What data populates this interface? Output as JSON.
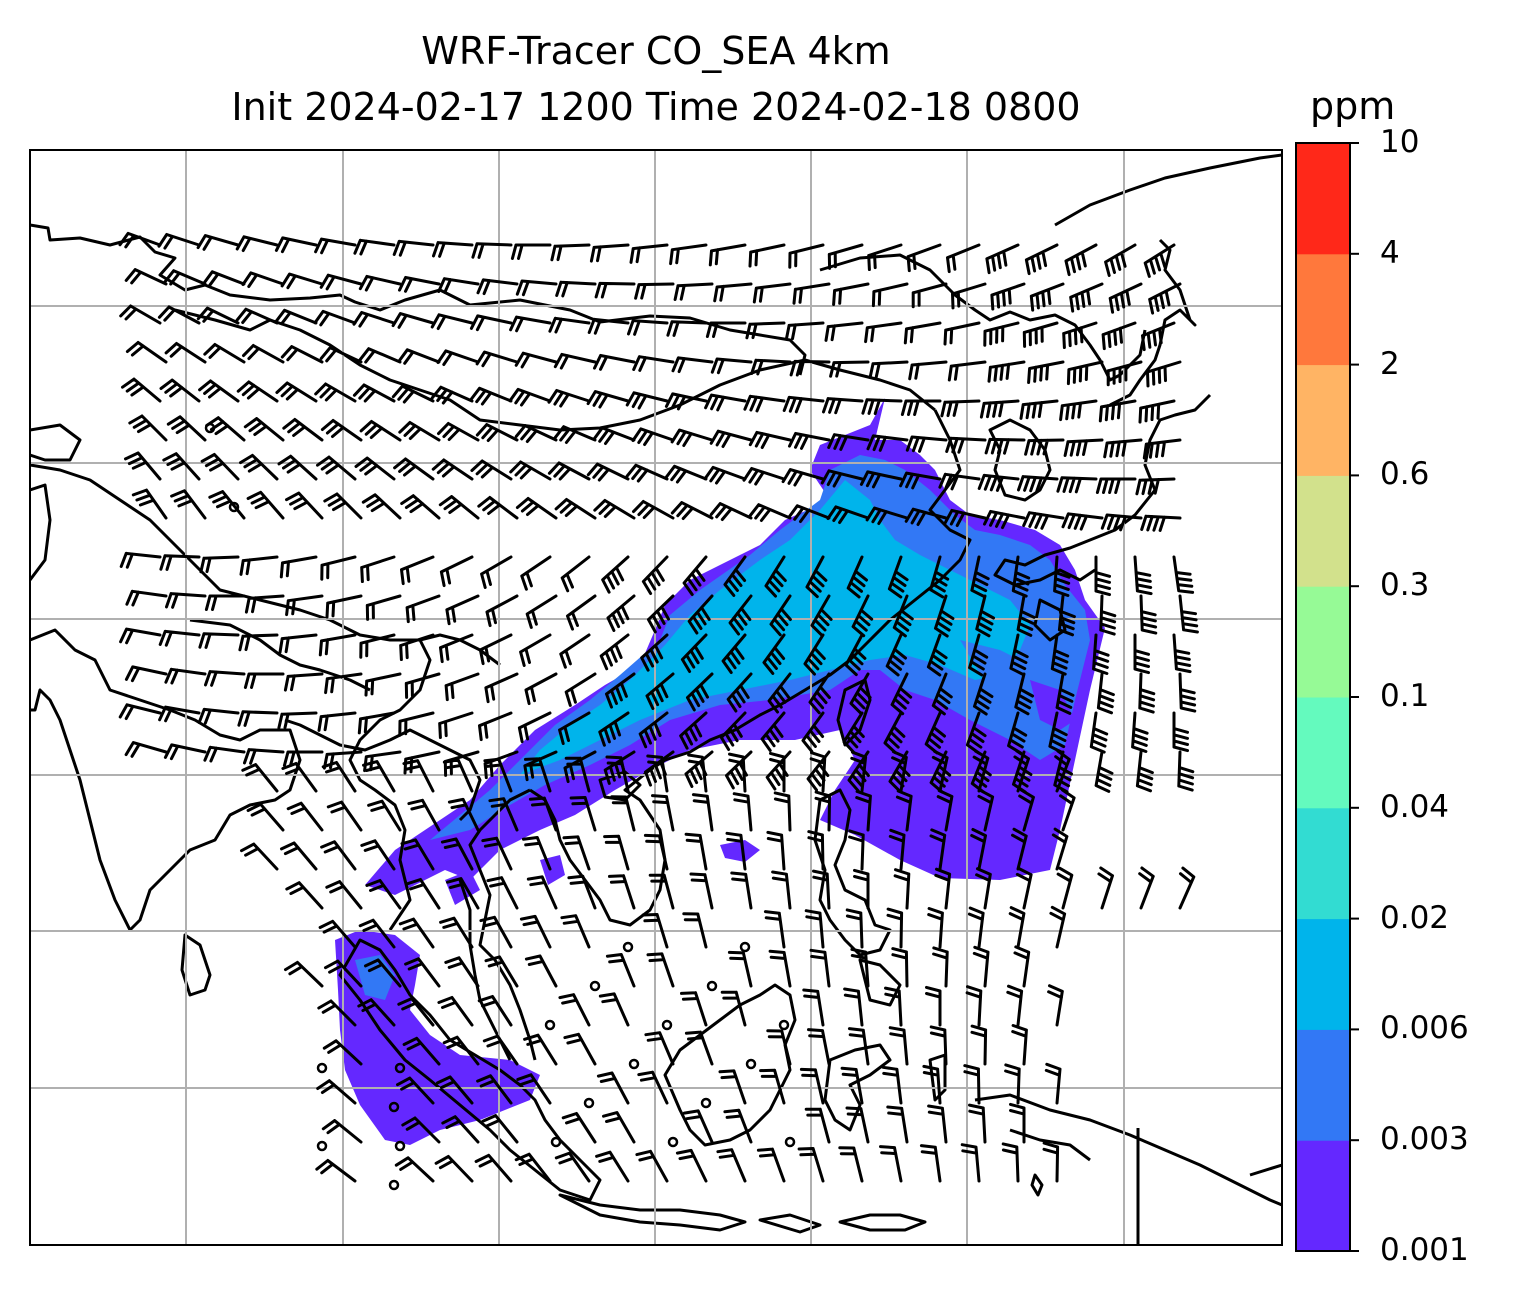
{
  "title_line1": "WRF-Tracer CO_SEA 4km",
  "title_line2": "Init 2024-02-17 1200 Time 2024-02-18 0800",
  "colorbar": {
    "unit": "ppm",
    "levels": [
      "0.001",
      "0.003",
      "0.006",
      "0.02",
      "0.04",
      "0.1",
      "0.3",
      "0.6",
      "2",
      "4",
      "10"
    ],
    "colors": [
      "#6428ff",
      "#3278f5",
      "#00b4eb",
      "#32dcd2",
      "#64fabe",
      "#96fa96",
      "#d2e18c",
      "#ffb464",
      "#ff783c",
      "#ff2819"
    ]
  },
  "map": {
    "gridlines": true,
    "coastlines": true,
    "wind_barbs": true,
    "field": "CO tracer concentration"
  }
}
